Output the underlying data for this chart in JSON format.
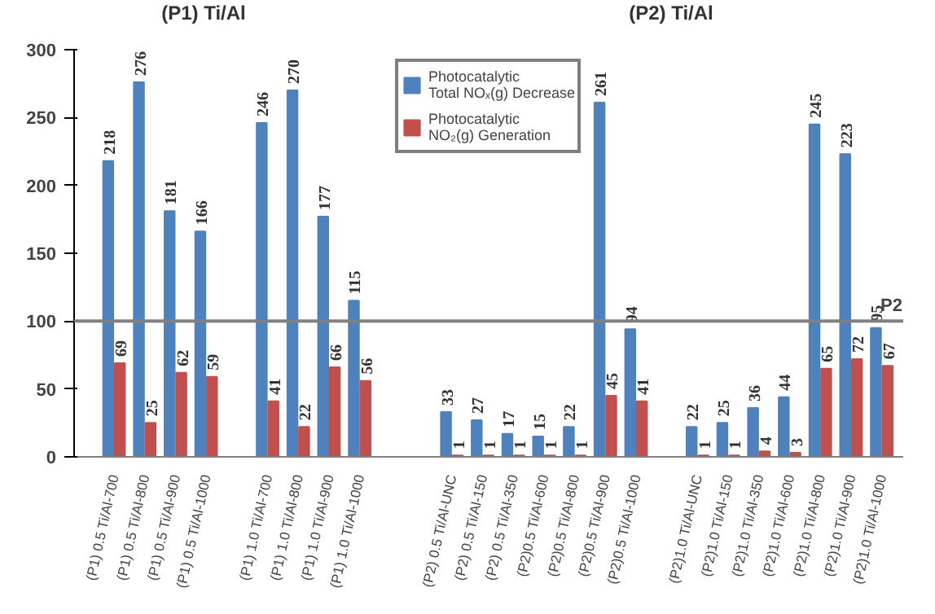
{
  "chart_data": {
    "type": "bar",
    "categories": [
      "(P1) 0.5 Ti/Al-700",
      "(P1) 0.5 Ti/Al-800",
      "(P1) 0.5 Ti/Al-900",
      "(P1) 0.5 Ti/Al-1000",
      null,
      "(P1) 1.0 Ti/Al-700",
      "(P1) 1.0 Ti/Al-800",
      "(P1) 1.0 Ti/Al-900",
      "(P1) 1.0 Ti/Al-1000",
      null,
      null,
      "(P2) 0.5 Ti/Al-UNC",
      "(P2) 0.5 Ti/Al-150",
      "(P2) 0.5 Ti/Al-350",
      "(P2)0.5 Ti/Al-600",
      "(P2)0.5 Ti/Al-800",
      "(P2)0.5 Ti/Al-900",
      "(P2)0.5 Ti/Al-1000",
      null,
      "(P2)1.0 Ti/Al-UNC",
      "(P2)1.0 Ti/Al-150",
      "(P2)1.0 Ti/Al-350",
      "(P2)1.0 Ti/Al-600",
      "(P2)1.0 Ti/Al-800",
      "(P2)1.0 Ti/Al-900",
      "(P2)1.0 Ti/Al-1000"
    ],
    "series": [
      {
        "name": "Photocatalytic Total NOₓ(g) Decrease",
        "color": "#4f81bd",
        "values": [
          218,
          276,
          181,
          166,
          null,
          246,
          270,
          177,
          115,
          null,
          null,
          33,
          27,
          17,
          15,
          22,
          261,
          94,
          null,
          22,
          25,
          36,
          44,
          245,
          223,
          95
        ]
      },
      {
        "name": "Photocatalytic NO₂(g) Generation",
        "color": "#c0504d",
        "values": [
          69,
          25,
          62,
          59,
          null,
          41,
          22,
          66,
          56,
          null,
          null,
          1,
          1,
          1,
          1,
          1,
          45,
          41,
          null,
          1,
          1,
          4,
          3,
          65,
          72,
          67
        ]
      }
    ],
    "ylim": [
      0,
      300
    ],
    "yticks": [
      0,
      50,
      100,
      150,
      200,
      250,
      300
    ],
    "ref_lines": [
      {
        "axis": "y",
        "value": 100,
        "label": "P2",
        "color": "#808080"
      }
    ],
    "annotations": [
      "(P1) Ti/Al",
      "(P2) Ti/Al"
    ],
    "data_labels": true,
    "grid": false,
    "legend": "top"
  }
}
